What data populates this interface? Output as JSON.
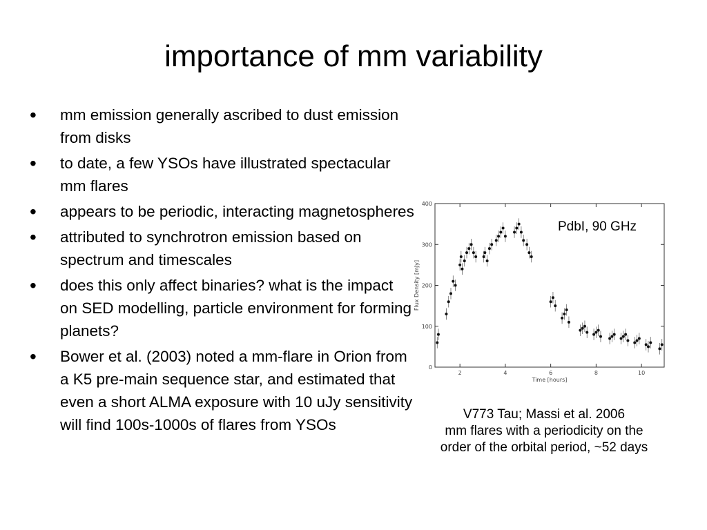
{
  "slide": {
    "title": "importance of mm variability",
    "bullets": [
      "mm emission generally ascribed to dust emission from disks",
      "to date, a few YSOs have illustrated spectacular mm flares",
      "appears to be periodic, interacting magnetospheres",
      "attributed to synchrotron emission based on spectrum and timescales",
      "does this only affect binaries? what is the impact on SED modelling, particle environment for forming planets?",
      "Bower et al. (2003) noted a mm-flare in Orion from a K5 pre-main sequence star, and estimated that even a short ALMA exposure with 10 uJy sensitivity will find 100s-1000s of flares from YSOs"
    ],
    "bullet_marker": "•",
    "caption": [
      "V773 Tau; Massi et al. 2006",
      "mm flares with a periodicity on the",
      "order of the orbital period, ~52 days"
    ]
  },
  "chart_data": {
    "type": "scatter",
    "annotation": "PdbI, 90 GHz",
    "xlabel": "Time [hours]",
    "ylabel": "Flux Density [mJy]",
    "xlim": [
      0.9,
      11.0
    ],
    "ylim": [
      0,
      400
    ],
    "xticks": [
      2,
      4,
      6,
      8,
      10
    ],
    "yticks": [
      0,
      100,
      200,
      300,
      400
    ],
    "grid": false,
    "error_bars": true,
    "x": [
      1.0,
      1.05,
      1.4,
      1.5,
      1.6,
      1.7,
      1.8,
      2.0,
      2.05,
      2.1,
      2.2,
      2.3,
      2.4,
      2.5,
      2.6,
      2.7,
      3.05,
      3.1,
      3.2,
      3.3,
      3.4,
      3.6,
      3.7,
      3.8,
      3.9,
      4.0,
      4.4,
      4.5,
      4.6,
      4.7,
      4.8,
      4.95,
      5.05,
      5.15,
      6.0,
      6.1,
      6.2,
      6.5,
      6.6,
      6.7,
      6.8,
      7.3,
      7.4,
      7.5,
      7.6,
      7.9,
      8.0,
      8.1,
      8.2,
      8.6,
      8.7,
      8.8,
      9.1,
      9.2,
      9.3,
      9.4,
      9.7,
      9.8,
      9.9,
      10.2,
      10.3,
      10.4,
      10.8,
      10.9
    ],
    "y": [
      60,
      80,
      130,
      160,
      180,
      210,
      200,
      250,
      270,
      240,
      260,
      280,
      290,
      300,
      280,
      270,
      270,
      280,
      260,
      290,
      300,
      310,
      320,
      330,
      340,
      320,
      330,
      340,
      350,
      330,
      310,
      300,
      280,
      270,
      160,
      170,
      150,
      120,
      130,
      140,
      110,
      90,
      95,
      100,
      85,
      80,
      85,
      90,
      75,
      70,
      75,
      80,
      70,
      75,
      80,
      65,
      60,
      65,
      70,
      55,
      50,
      60,
      45,
      55
    ]
  }
}
